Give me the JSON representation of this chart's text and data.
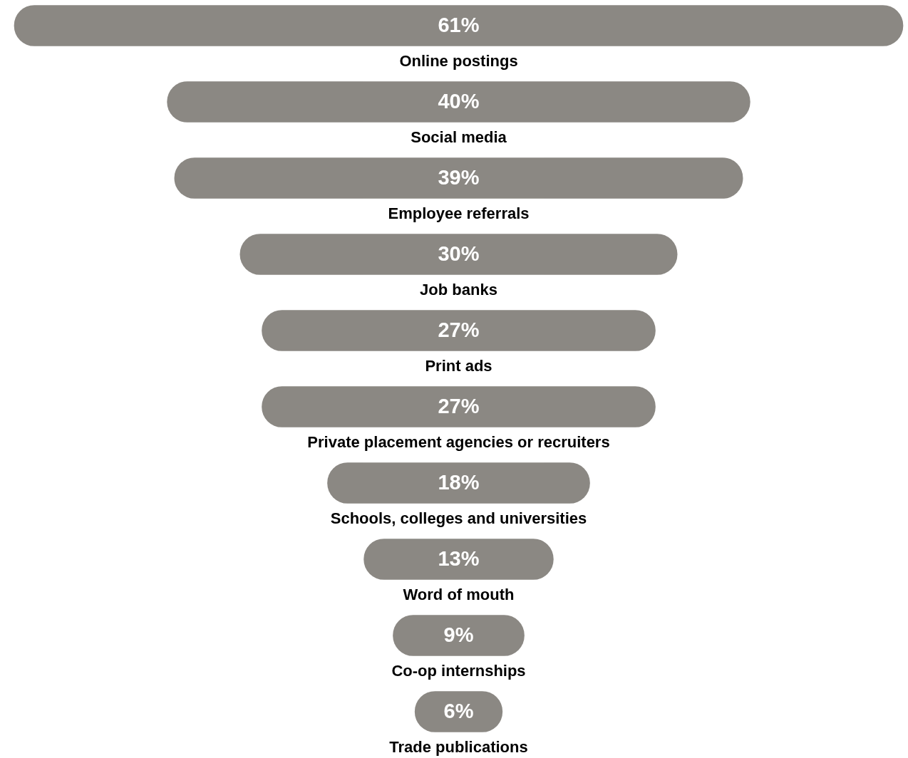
{
  "chart_data": {
    "type": "other",
    "categories": [
      "Online postings",
      "Social media",
      "Employee referrals",
      "Job banks",
      "Print ads",
      "Private placement agencies or recruiters",
      "Schools, colleges and universities",
      "Word of mouth",
      "Co-op internships",
      "Trade publications"
    ],
    "values": [
      61,
      40,
      39,
      30,
      27,
      27,
      18,
      13,
      9,
      6
    ],
    "value_labels": [
      "61%",
      "40%",
      "39%",
      "30%",
      "27%",
      "27%",
      "18%",
      "13%",
      "9%",
      "6%"
    ],
    "color": "#8b8883"
  }
}
